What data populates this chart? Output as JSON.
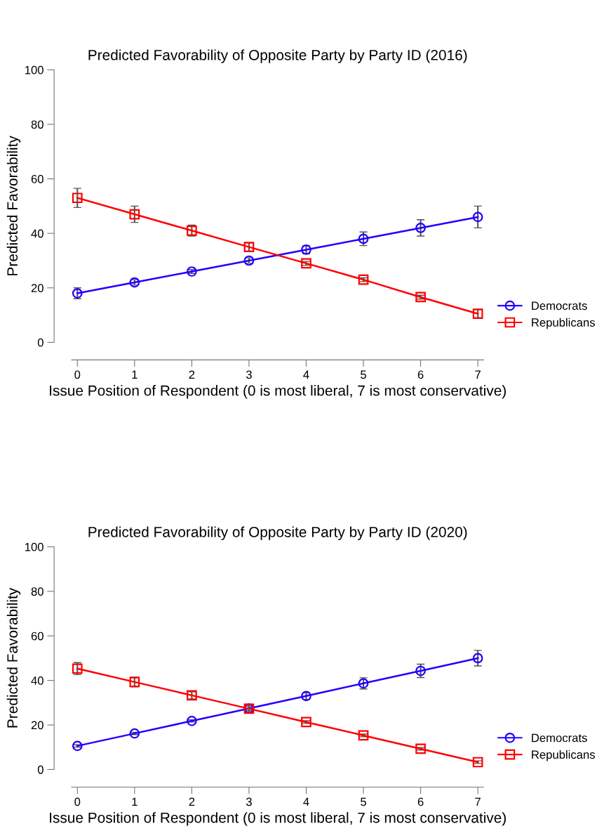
{
  "chart_data": [
    {
      "type": "line",
      "title": "Predicted Favorability of Opposite Party by Party ID (2016)",
      "xlabel": "Issue Position of Respondent (0 is most liberal, 7 is most conservative)",
      "ylabel": "Predicted Favorability",
      "x": [
        0,
        1,
        2,
        3,
        4,
        5,
        6,
        7
      ],
      "xlim": [
        -0.1,
        7.1
      ],
      "xticks": [
        0,
        1,
        2,
        3,
        4,
        5,
        6,
        7
      ],
      "ylim": [
        0,
        100
      ],
      "yticks": [
        0,
        20,
        40,
        60,
        80,
        100
      ],
      "grid": false,
      "legend": "right",
      "series": [
        {
          "name": "Democrats",
          "color": "#2200ff",
          "marker": "circle",
          "values": [
            18,
            22,
            26,
            30,
            34,
            38,
            42,
            46
          ],
          "errors": [
            2,
            1,
            0.7,
            1,
            1.5,
            2.5,
            3,
            4
          ]
        },
        {
          "name": "Republicans",
          "color": "#ff0000",
          "marker": "square",
          "values": [
            53,
            47,
            41,
            35,
            29,
            23,
            16.6,
            10.5
          ],
          "errors": [
            3.5,
            3,
            2,
            1.5,
            0.7,
            0.7,
            0.7,
            1.5
          ]
        }
      ]
    },
    {
      "type": "line",
      "title": "Predicted Favorability of Opposite Party by Party ID (2020)",
      "xlabel": "Issue Position of Respondent (0 is most liberal, 7 is most conservative)",
      "ylabel": "Predicted Favorability",
      "x": [
        0,
        1,
        2,
        3,
        4,
        5,
        6,
        7
      ],
      "xlim": [
        -0.1,
        7.1
      ],
      "xticks": [
        0,
        1,
        2,
        3,
        4,
        5,
        6,
        7
      ],
      "ylim": [
        0,
        100
      ],
      "yticks": [
        0,
        20,
        40,
        60,
        80,
        100
      ],
      "grid": false,
      "legend": "right",
      "series": [
        {
          "name": "Democrats",
          "color": "#2200ff",
          "marker": "circle",
          "values": [
            10.6,
            16.2,
            21.8,
            27.4,
            33,
            38.7,
            44.3,
            50
          ],
          "errors": [
            0.5,
            0.5,
            0.5,
            1,
            1.5,
            2.5,
            3,
            3.5
          ]
        },
        {
          "name": "Republicans",
          "color": "#ff0000",
          "marker": "square",
          "values": [
            45.3,
            39.3,
            33.3,
            27.3,
            21.3,
            15.3,
            9.3,
            3.3
          ],
          "errors": [
            2.7,
            2.2,
            1.6,
            1.6,
            0.6,
            0.6,
            0.6,
            0.6
          ]
        }
      ]
    }
  ]
}
